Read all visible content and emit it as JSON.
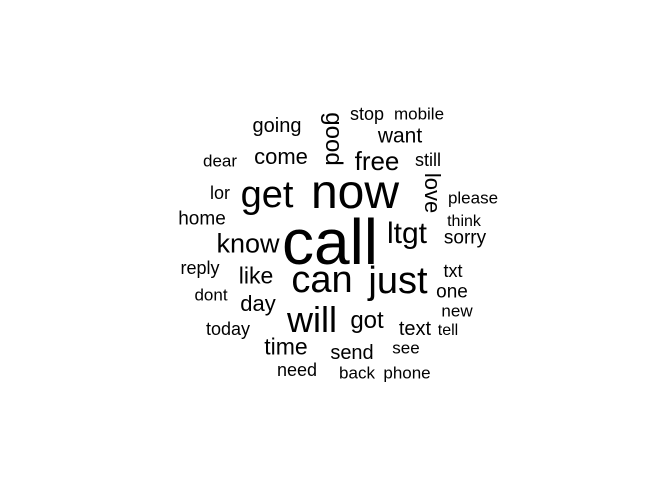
{
  "words": [
    {
      "text": "call",
      "weight": 64
    },
    {
      "text": "now",
      "weight": 48
    },
    {
      "text": "can",
      "weight": 38
    },
    {
      "text": "just",
      "weight": 38
    },
    {
      "text": "get",
      "weight": 38
    },
    {
      "text": "will",
      "weight": 36
    },
    {
      "text": "ltgt",
      "weight": 30
    },
    {
      "text": "know",
      "weight": 27
    },
    {
      "text": "free",
      "weight": 26
    },
    {
      "text": "good",
      "weight": 24
    },
    {
      "text": "got",
      "weight": 24
    },
    {
      "text": "time",
      "weight": 23
    },
    {
      "text": "like",
      "weight": 23
    },
    {
      "text": "come",
      "weight": 22
    },
    {
      "text": "day",
      "weight": 22
    },
    {
      "text": "love",
      "weight": 22
    },
    {
      "text": "want",
      "weight": 21
    },
    {
      "text": "going",
      "weight": 20
    },
    {
      "text": "send",
      "weight": 20
    },
    {
      "text": "text",
      "weight": 20
    },
    {
      "text": "sorry",
      "weight": 19
    },
    {
      "text": "home",
      "weight": 19
    },
    {
      "text": "one",
      "weight": 19
    },
    {
      "text": "reply",
      "weight": 18
    },
    {
      "text": "stop",
      "weight": 18
    },
    {
      "text": "today",
      "weight": 18
    },
    {
      "text": "need",
      "weight": 18
    },
    {
      "text": "txt",
      "weight": 18
    },
    {
      "text": "still",
      "weight": 18
    },
    {
      "text": "lor",
      "weight": 18
    },
    {
      "text": "back",
      "weight": 17
    },
    {
      "text": "phone",
      "weight": 17
    },
    {
      "text": "dear",
      "weight": 17
    },
    {
      "text": "see",
      "weight": 17
    },
    {
      "text": "mobile",
      "weight": 17
    },
    {
      "text": "please",
      "weight": 17
    },
    {
      "text": "dont",
      "weight": 17
    },
    {
      "text": "new",
      "weight": 17
    },
    {
      "text": "think",
      "weight": 16
    },
    {
      "text": "tell",
      "weight": 16
    }
  ]
}
